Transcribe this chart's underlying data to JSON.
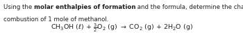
{
  "line1_pre": "Using the ",
  "line1_bold": "molar enthalpies of formation",
  "line1_post": " and the formula, determine the change in enthalpy for the",
  "line2": "combustion of 1 mole of methanol.",
  "equation": "CH$_3$OH $({\\ell})$ + $\\frac{3}{2}$O$_2$ (g) $\\rightarrow$ CO$_2$ (g) + 2H$_2$O (g)",
  "background_color": "#ffffff",
  "text_color": "#231f20",
  "fontsize": 6.2,
  "eq_fontsize": 6.8
}
